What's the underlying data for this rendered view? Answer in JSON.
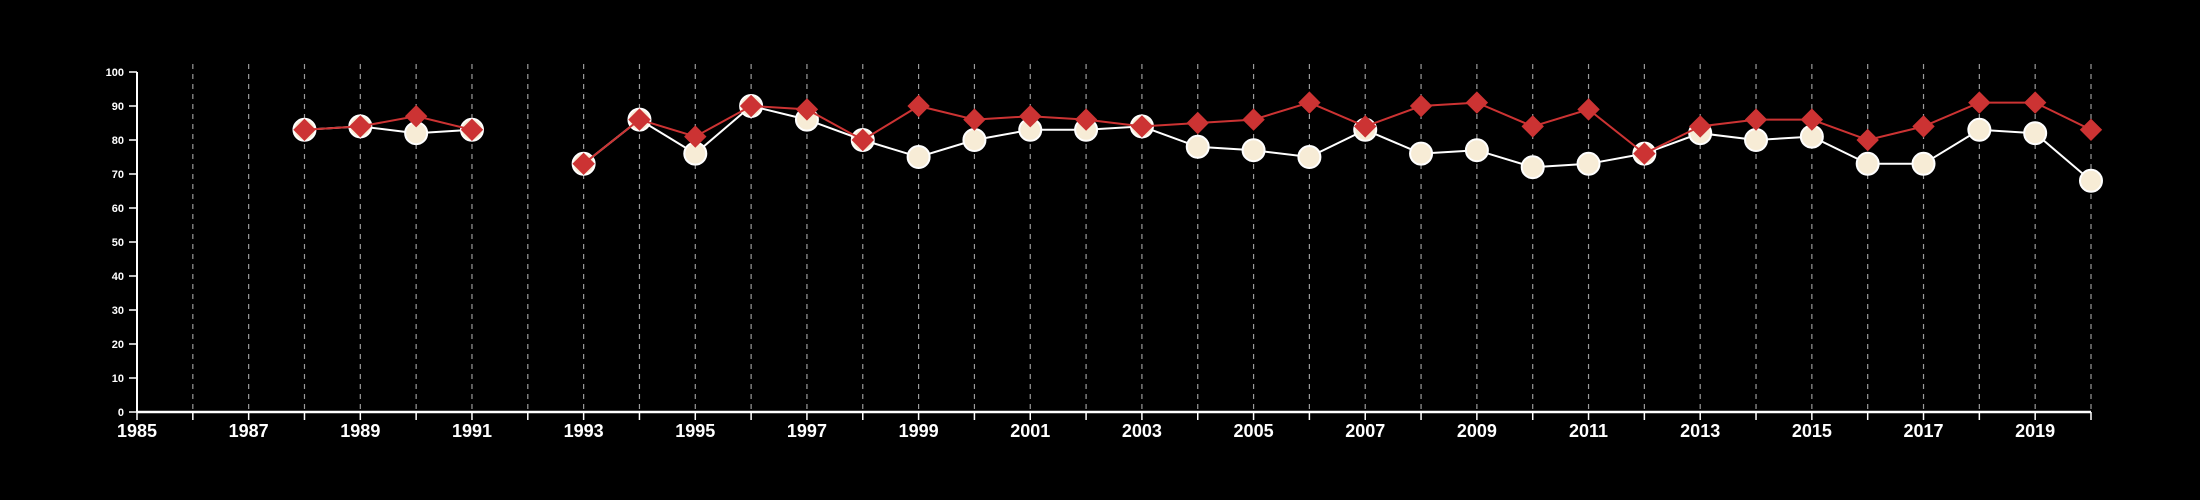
{
  "chart_data": {
    "type": "line",
    "title": "",
    "xlabel": "",
    "ylabel": "",
    "xlim": [
      1985,
      2020
    ],
    "ylim": [
      0,
      100
    ],
    "grid": "vertical dashed",
    "legend": "none",
    "y_ticks": [
      "0",
      "10",
      "20",
      "30",
      "40",
      "50",
      "60",
      "70",
      "80",
      "90",
      "100"
    ],
    "x_tick_labels": [
      "1985",
      "1987",
      "1989",
      "1991",
      "1993",
      "1995",
      "1997",
      "1999",
      "2001",
      "2003",
      "2005",
      "2007",
      "2009",
      "2011",
      "2013",
      "2015",
      "2017",
      "2019"
    ],
    "x": [
      1985,
      1986,
      1987,
      1988,
      1989,
      1990,
      1991,
      1992,
      1993,
      1994,
      1995,
      1996,
      1997,
      1998,
      1999,
      2000,
      2001,
      2002,
      2003,
      2004,
      2005,
      2006,
      2007,
      2008,
      2009,
      2010,
      2011,
      2012,
      2013,
      2014,
      2015,
      2016,
      2017,
      2018,
      2019,
      2020
    ],
    "series": [
      {
        "marker": "circle",
        "color": "#ffffff",
        "fill": "#f7ecd6",
        "values": [
          null,
          null,
          null,
          83,
          84,
          82,
          83,
          null,
          73,
          86,
          76,
          90,
          86,
          80,
          75,
          80,
          83,
          83,
          84,
          78,
          77,
          75,
          83,
          76,
          77,
          72,
          73,
          76,
          82,
          80,
          81,
          73,
          73,
          83,
          82,
          68
        ]
      },
      {
        "marker": "diamond",
        "color": "#cc3333",
        "fill": "#cc3333",
        "values": [
          null,
          null,
          null,
          83,
          84,
          87,
          83,
          null,
          73,
          86,
          81,
          90,
          89,
          80,
          90,
          86,
          87,
          86,
          84,
          85,
          86,
          91,
          84,
          90,
          91,
          84,
          89,
          76,
          84,
          86,
          86,
          80,
          84,
          91,
          91,
          83
        ]
      }
    ]
  }
}
